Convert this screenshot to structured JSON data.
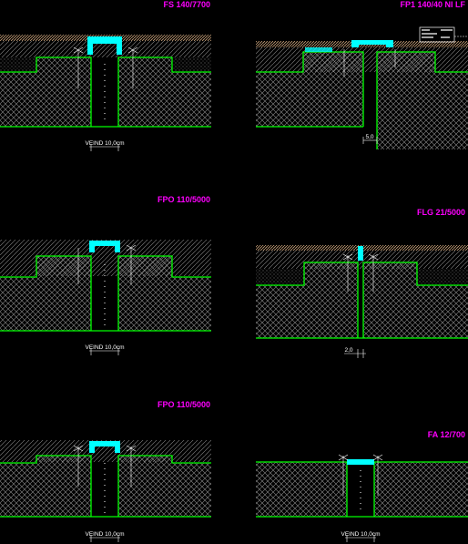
{
  "canvas": {
    "background": "#000000",
    "colors": {
      "title": "#ff00ff",
      "outline": "#00ff00",
      "joint": "#00ffff",
      "hatch": "#9a9a9a",
      "slab": "#c8a078",
      "annotation": "#ffffff"
    }
  },
  "details": [
    {
      "id": "d1",
      "title": "FS 140/7700",
      "dimension": "VEIND 10,0cm"
    },
    {
      "id": "d2",
      "title": "FP1 140/40 NI LF",
      "dimension": "5,0"
    },
    {
      "id": "d3",
      "title": "FPO 110/5000",
      "dimension": "VEIND 10,0cm"
    },
    {
      "id": "d4",
      "title": "FLG 21/5000",
      "dimension": "2,0"
    },
    {
      "id": "d5",
      "title": "FPO 110/5000",
      "dimension": "VEIND 10,0cm"
    },
    {
      "id": "d6",
      "title": "FA 12/700",
      "dimension": "VEIND 10,0cm"
    }
  ]
}
